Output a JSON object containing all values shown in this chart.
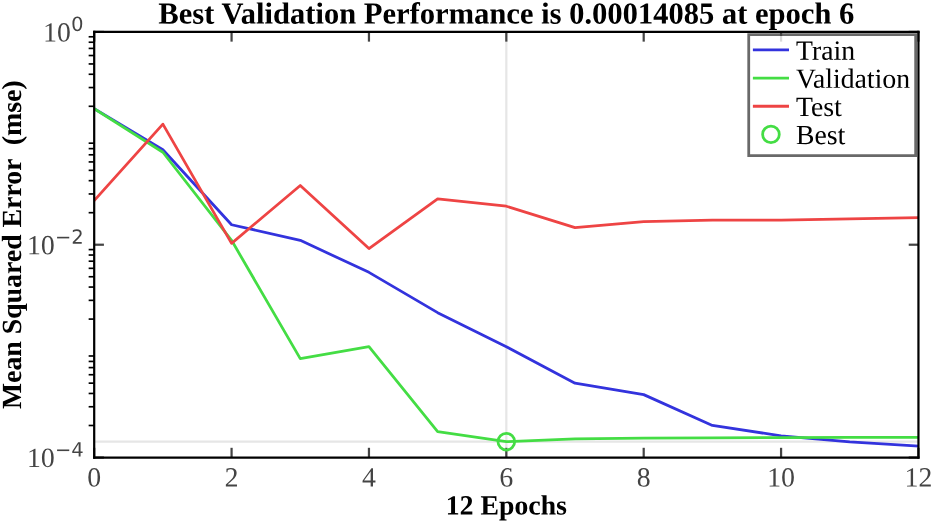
{
  "chart_data": {
    "type": "line",
    "title": "Best Validation Performance is 0.00014085 at epoch 6",
    "xlabel": "12 Epochs",
    "ylabel": "Mean Squared Error  (mse)",
    "x": [
      0,
      1,
      2,
      3,
      4,
      5,
      6,
      7,
      8,
      9,
      10,
      11,
      12
    ],
    "series": [
      {
        "name": "Train",
        "color": "#3333dd",
        "values": [
          0.19,
          0.078,
          0.0154,
          0.011,
          0.0055,
          0.0023,
          0.0011,
          0.0005,
          0.00039,
          0.0002,
          0.00016,
          0.00014,
          0.000128
        ]
      },
      {
        "name": "Validation",
        "color": "#44dd44",
        "values": [
          0.19,
          0.074,
          0.011,
          0.00085,
          0.0011,
          0.000175,
          0.00014085,
          0.00015,
          0.000152,
          0.000153,
          0.000154,
          0.000155,
          0.000155
        ]
      },
      {
        "name": "Test",
        "color": "#ee4444",
        "values": [
          0.026,
          0.136,
          0.0103,
          0.036,
          0.0092,
          0.027,
          0.023,
          0.0145,
          0.0165,
          0.017,
          0.017,
          0.0175,
          0.018
        ]
      },
      {
        "name": "Best",
        "type": "scatter",
        "marker": "circle",
        "color": "#44dd44",
        "x": [
          6
        ],
        "values": [
          0.00014085
        ]
      }
    ],
    "ref_lines": [
      {
        "axis": "x",
        "value": 6,
        "label": null,
        "color": "#e6e6e6"
      },
      {
        "axis": "y",
        "value": 0.00014085,
        "label": null,
        "color": "#e6e6e6"
      }
    ],
    "log": "y",
    "marker": "none",
    "line_style": "solid",
    "legend": "top right",
    "grid": false,
    "xlim": [
      0,
      12
    ],
    "xticks": [
      0,
      2,
      4,
      6,
      8,
      10,
      12
    ],
    "ylim": [
      0.0001,
      1
    ],
    "yticks": [
      {
        "value": 1,
        "label": "10$^{0}$"
      },
      {
        "value": 0.01,
        "label": "10$^{−2}$"
      },
      {
        "value": 0.0001,
        "label": "10$^{−4}$"
      }
    ]
  }
}
